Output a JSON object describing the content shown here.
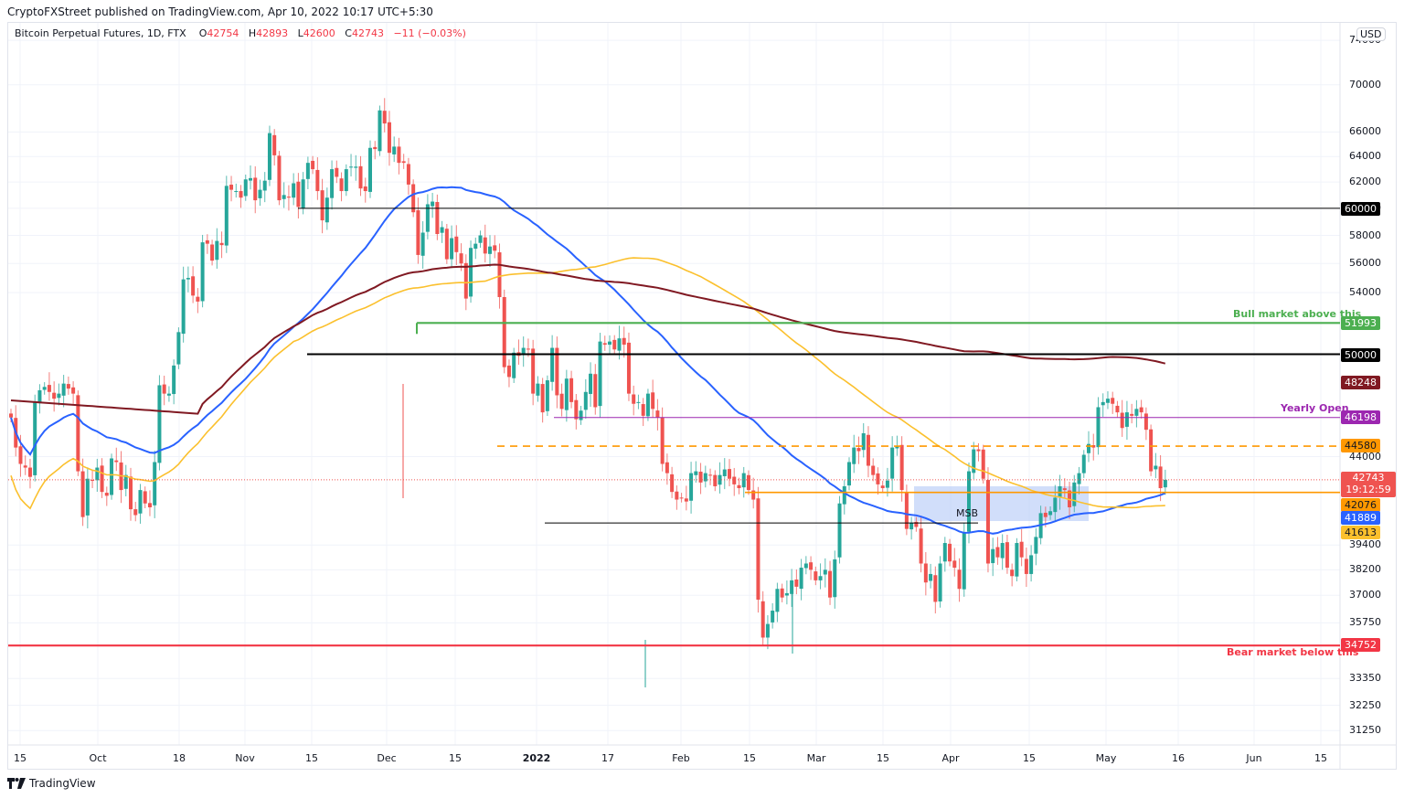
{
  "header": {
    "publisher": "CryptoFXStreet published on TradingView.com, Apr 10, 2022 10:17 UTC+5:30"
  },
  "legend": {
    "symbol": "Bitcoin Perpetual Futures, 1D, FTX",
    "open_label": "O",
    "open": "42754",
    "high_label": "H",
    "high": "42893",
    "low_label": "L",
    "low": "42600",
    "close_label": "C",
    "close": "42743",
    "change": "−11 (−0.03%)"
  },
  "currency_button": "USD",
  "footer": {
    "brand": "TradingView"
  },
  "annotations": {
    "bull": "Bull market above this",
    "bear": "Bear market below this",
    "yearly_open": "Yearly Open",
    "msb": "MSB"
  },
  "colors": {
    "up": "#26a69a",
    "down": "#ef5350",
    "ma_blue": "#2962ff",
    "ma_yellow": "#fbc02d",
    "ma_maroon": "#801922",
    "bull_line": "#4caf50",
    "bear_line": "#f23645",
    "yearly_open": "#9c27b0",
    "resistance_dashed": "#ff9800",
    "support_orange": "#ff9800",
    "msb_zone": "#b2c8f7"
  },
  "chart_data": {
    "type": "candlestick",
    "title": "Bitcoin Perpetual Futures, 1D, FTX",
    "xlabel": "",
    "ylabel": "USD",
    "y_scale": "log",
    "ylim": [
      30500,
      74500
    ],
    "x_tick_labels": [
      "15",
      "Oct",
      "18",
      "Nov",
      "15",
      "Dec",
      "15",
      "2022",
      "17",
      "Feb",
      "15",
      "Mar",
      "15",
      "Apr",
      "15",
      "May",
      "16",
      "Jun",
      "15"
    ],
    "y_tick_labels": [
      "74000",
      "70000",
      "66000",
      "64000",
      "62000",
      "60000",
      "58000",
      "56000",
      "54000",
      "44000",
      "39400",
      "38200",
      "37000",
      "35750",
      "33350",
      "32250",
      "31250"
    ],
    "horizontal_levels": [
      {
        "price": 60000,
        "label": "60000",
        "color": "#000000",
        "style": "solid"
      },
      {
        "price": 51993,
        "label": "51993",
        "color": "#4caf50",
        "style": "solid",
        "note": "Bull market above this"
      },
      {
        "price": 50000,
        "label": "50000",
        "color": "#000000",
        "style": "solid"
      },
      {
        "price": 46198,
        "label": "46198",
        "color": "#9c27b0",
        "style": "solid",
        "note": "Yearly Open"
      },
      {
        "price": 44580,
        "label": "44580",
        "color": "#ff9800",
        "style": "dashed"
      },
      {
        "price": 42076,
        "label": "42076",
        "color": "#ff9800",
        "style": "solid"
      },
      {
        "price": 40500,
        "label": "",
        "color": "#000000",
        "style": "solid",
        "note": "MSB"
      },
      {
        "price": 34752,
        "label": "34752",
        "color": "#f23645",
        "style": "solid",
        "note": "Bear market below this"
      }
    ],
    "moving_averages": [
      {
        "name": "MA (blue)",
        "color": "#2962ff",
        "last": 41889
      },
      {
        "name": "MA (yellow)",
        "color": "#fbc02d",
        "last": 41613
      },
      {
        "name": "MA (maroon)",
        "color": "#801922",
        "last": 48248
      }
    ],
    "last_price": {
      "value": 42743,
      "countdown": "19:12:59"
    },
    "price_tags": [
      {
        "value": "60000",
        "bg": "#000000"
      },
      {
        "value": "51993",
        "bg": "#4caf50"
      },
      {
        "value": "50000",
        "bg": "#000000"
      },
      {
        "value": "48248",
        "bg": "#801922"
      },
      {
        "value": "46198",
        "bg": "#9c27b0"
      },
      {
        "value": "44580",
        "bg": "#ff9800"
      },
      {
        "value": "42743",
        "bg": "#ef5350"
      },
      {
        "value": "42076",
        "bg": "#ff9800"
      },
      {
        "value": "41889",
        "bg": "#2962ff"
      },
      {
        "value": "41613",
        "bg": "#fbc02d"
      },
      {
        "value": "34752",
        "bg": "#f23645"
      }
    ],
    "candles_close": [
      46200,
      44500,
      43600,
      43400,
      42900,
      47100,
      47800,
      48000,
      47700,
      47300,
      47600,
      48200,
      47900,
      47600,
      43200,
      40800,
      42800,
      42700,
      43400,
      42100,
      41900,
      43900,
      43700,
      42200,
      43000,
      41200,
      40900,
      42200,
      41500,
      41300,
      43700,
      48100,
      47600,
      47600,
      49300,
      51400,
      54900,
      55000,
      53800,
      53400,
      57500,
      57400,
      56200,
      57600,
      57300,
      61700,
      61400,
      61300,
      60800,
      62200,
      62300,
      60600,
      61400,
      62100,
      65900,
      64100,
      60600,
      61000,
      60800,
      61900,
      60100,
      62200,
      63500,
      63000,
      61300,
      59100,
      60800,
      63000,
      62400,
      61300,
      63000,
      63200,
      63200,
      61500,
      61300,
      64700,
      64600,
      67800,
      66700,
      64300,
      64800,
      63500,
      63500,
      61800,
      59700,
      56600,
      58200,
      60300,
      60500,
      58100,
      58600,
      56300,
      57800,
      56800,
      56000,
      53600,
      57100,
      57400,
      58000,
      56700,
      57200,
      56900,
      53700,
      49200,
      48600,
      50100,
      49900,
      50400,
      50300,
      47600,
      48200,
      46500,
      48400,
      50400,
      47500,
      46700,
      48500,
      47100,
      46100,
      46600,
      47700,
      48800,
      46800,
      50800,
      50600,
      50800,
      50300,
      51000,
      50600,
      47600,
      47000,
      47100,
      46300,
      47600,
      46700,
      46200,
      43600,
      43100,
      42100,
      41700,
      41800,
      41600,
      43100,
      43200,
      42600,
      43100,
      43000,
      42400,
      43000,
      43300,
      42800,
      42500,
      42300,
      43100,
      42200,
      41700,
      36800,
      35100,
      35700,
      36300,
      37300,
      36900,
      37100,
      37700,
      37400,
      38300,
      38500,
      38200,
      37700,
      37900,
      38200,
      36900,
      38700,
      41500,
      42400,
      43700,
      44500,
      44300,
      45300,
      43500,
      43000,
      42500,
      42300,
      42700,
      44500,
      44600,
      42200,
      40200,
      40500,
      40300,
      38500,
      37600,
      38000,
      36700,
      38500,
      39500,
      38600,
      38300,
      37300,
      40000,
      43200,
      44400,
      44300,
      42800,
      38500,
      39200,
      38800,
      39500,
      38300,
      37900,
      39500,
      38800,
      38000,
      38900,
      39800,
      41000,
      40800,
      41100,
      41800,
      42400,
      42200,
      41300,
      42600,
      43100,
      44100,
      44700,
      44500,
      46800,
      47100,
      47300,
      47000,
      46500,
      45600,
      46500,
      46300,
      46700,
      46500,
      45500,
      43200,
      43500,
      42300,
      42743
    ]
  }
}
